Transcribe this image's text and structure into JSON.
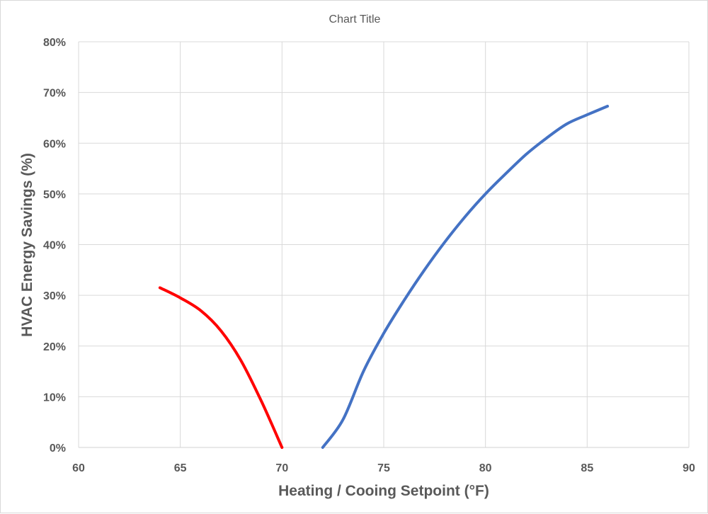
{
  "chart_data": {
    "type": "line",
    "title": "Chart Title",
    "xlabel": "Heating / Cooing Setpoint (°F)",
    "ylabel": "HVAC Energy Savings (%)",
    "xlim": [
      60,
      90
    ],
    "ylim": [
      0,
      0.8
    ],
    "xticks": [
      60,
      65,
      70,
      75,
      80,
      85,
      90
    ],
    "xtick_labels": [
      "60",
      "65",
      "70",
      "75",
      "80",
      "85",
      "90"
    ],
    "yticks": [
      0,
      0.1,
      0.2,
      0.3,
      0.4,
      0.5,
      0.6,
      0.7,
      0.8
    ],
    "ytick_labels": [
      "0%",
      "10%",
      "20%",
      "30%",
      "40%",
      "50%",
      "60%",
      "70%",
      "80%"
    ],
    "grid": true,
    "series": [
      {
        "color": "#ff0000",
        "points": [
          [
            64,
            0.315
          ],
          [
            65,
            0.295
          ],
          [
            66,
            0.27
          ],
          [
            67,
            0.23
          ],
          [
            68,
            0.17
          ],
          [
            69,
            0.09
          ],
          [
            70,
            0.0
          ]
        ]
      },
      {
        "color": "#4472c4",
        "points": [
          [
            72,
            0.0
          ],
          [
            73,
            0.055
          ],
          [
            74,
            0.15
          ],
          [
            75,
            0.225
          ],
          [
            76,
            0.29
          ],
          [
            77,
            0.35
          ],
          [
            78,
            0.405
          ],
          [
            79,
            0.455
          ],
          [
            80,
            0.5
          ],
          [
            81,
            0.54
          ],
          [
            82,
            0.578
          ],
          [
            83,
            0.61
          ],
          [
            84,
            0.638
          ],
          [
            85,
            0.656
          ],
          [
            86,
            0.673
          ]
        ]
      }
    ]
  }
}
